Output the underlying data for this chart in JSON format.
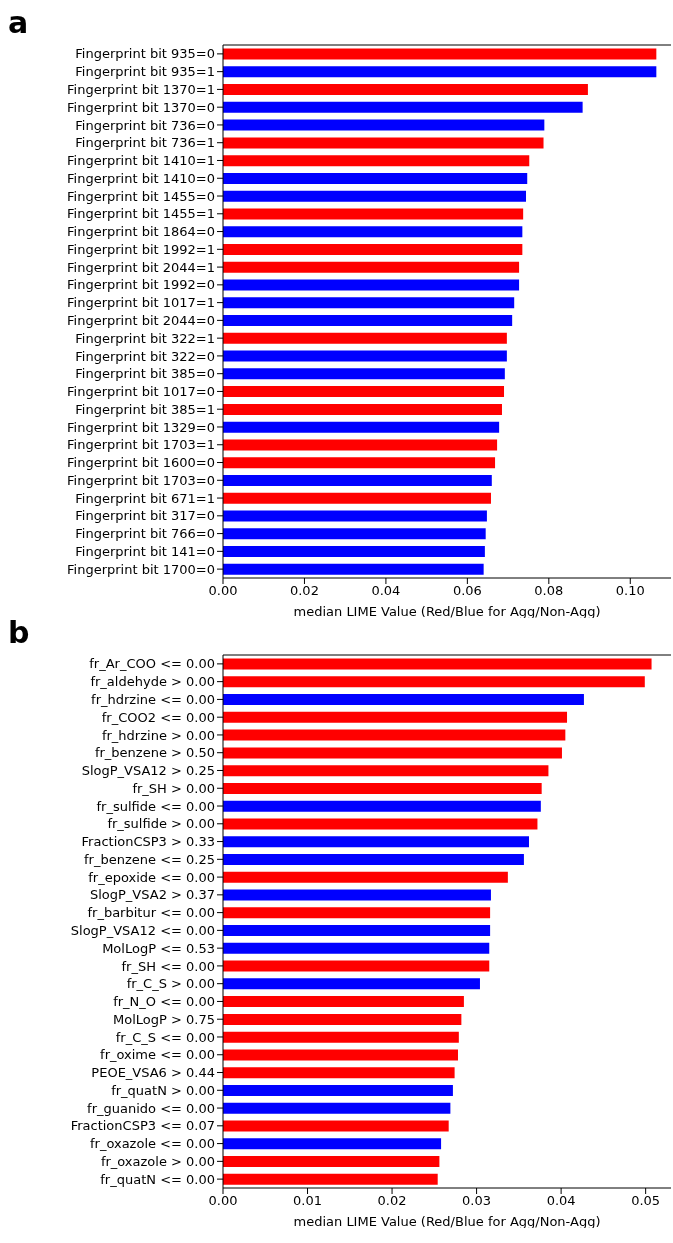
{
  "chart_data": [
    {
      "type": "bar",
      "orientation": "horizontal",
      "title": "a",
      "xlabel": "median LIME Value (Red/Blue for Agg/Non-Agg)",
      "categories": [
        "Fingerprint bit 935=0",
        "Fingerprint bit 935=1",
        "Fingerprint bit 1370=1",
        "Fingerprint bit 1370=0",
        "Fingerprint bit 736=0",
        "Fingerprint bit 736=1",
        "Fingerprint bit 1410=1",
        "Fingerprint bit 1410=0",
        "Fingerprint bit 1455=0",
        "Fingerprint bit 1455=1",
        "Fingerprint bit 1864=0",
        "Fingerprint bit 1992=1",
        "Fingerprint bit 2044=1",
        "Fingerprint bit 1992=0",
        "Fingerprint bit 1017=1",
        "Fingerprint bit 2044=0",
        "Fingerprint bit 322=1",
        "Fingerprint bit 322=0",
        "Fingerprint bit 385=0",
        "Fingerprint bit 1017=0",
        "Fingerprint bit 385=1",
        "Fingerprint bit 1329=0",
        "Fingerprint bit 1703=1",
        "Fingerprint bit 1600=0",
        "Fingerprint bit 1703=0",
        "Fingerprint bit 671=1",
        "Fingerprint bit 317=0",
        "Fingerprint bit 766=0",
        "Fingerprint bit 141=0",
        "Fingerprint bit 1700=0"
      ],
      "values": [
        0.1064,
        0.1064,
        0.0896,
        0.0883,
        0.0789,
        0.0787,
        0.0752,
        0.0747,
        0.0744,
        0.0737,
        0.0735,
        0.0735,
        0.0727,
        0.0727,
        0.0715,
        0.071,
        0.0697,
        0.0697,
        0.0692,
        0.069,
        0.0685,
        0.0678,
        0.0673,
        0.0668,
        0.066,
        0.0658,
        0.0648,
        0.0645,
        0.0643,
        0.064
      ],
      "colors": [
        "#ff0000",
        "#0000ff",
        "#ff0000",
        "#0000ff",
        "#0000ff",
        "#ff0000",
        "#ff0000",
        "#0000ff",
        "#0000ff",
        "#ff0000",
        "#0000ff",
        "#ff0000",
        "#ff0000",
        "#0000ff",
        "#0000ff",
        "#0000ff",
        "#ff0000",
        "#0000ff",
        "#0000ff",
        "#ff0000",
        "#ff0000",
        "#0000ff",
        "#ff0000",
        "#ff0000",
        "#0000ff",
        "#ff0000",
        "#0000ff",
        "#0000ff",
        "#0000ff",
        "#0000ff"
      ],
      "xlim": [
        0,
        0.11
      ],
      "xticks": [
        {
          "value": 0,
          "label": "0.00"
        },
        {
          "value": 0.02,
          "label": "0.02"
        },
        {
          "value": 0.04,
          "label": "0.04"
        },
        {
          "value": 0.06,
          "label": "0.06"
        },
        {
          "value": 0.08,
          "label": "0.08"
        },
        {
          "value": 0.1,
          "label": "0.10"
        }
      ]
    },
    {
      "type": "bar",
      "orientation": "horizontal",
      "title": "b",
      "xlabel": "median LIME Value (Red/Blue for Agg/Non-Agg)",
      "categories": [
        "fr_Ar_COO <= 0.00",
        "fr_aldehyde > 0.00",
        "fr_hdrzine <= 0.00",
        "fr_COO2 <= 0.00",
        "fr_hdrzine > 0.00",
        "fr_benzene > 0.50",
        "SlogP_VSA12 > 0.25",
        "fr_SH > 0.00",
        "fr_sulfide <= 0.00",
        "fr_sulfide > 0.00",
        "FractionCSP3 > 0.33",
        "fr_benzene <= 0.25",
        "fr_epoxide <= 0.00",
        "SlogP_VSA2 > 0.37",
        "fr_barbitur <= 0.00",
        "SlogP_VSA12 <= 0.00",
        "MolLogP <= 0.53",
        "fr_SH <= 0.00",
        "fr_C_S > 0.00",
        "fr_N_O <= 0.00",
        "MolLogP > 0.75",
        "fr_C_S <= 0.00",
        "fr_oxime <= 0.00",
        "PEOE_VSA6 > 0.44",
        "fr_quatN > 0.00",
        "fr_guanido <= 0.00",
        "FractionCSP3 <= 0.07",
        "fr_oxazole <= 0.00",
        "fr_oxazole > 0.00",
        "fr_quatN <= 0.00"
      ],
      "values": [
        0.0507,
        0.0499,
        0.0427,
        0.0407,
        0.0405,
        0.0401,
        0.0385,
        0.0377,
        0.0376,
        0.0372,
        0.0362,
        0.0356,
        0.0337,
        0.0317,
        0.0316,
        0.0316,
        0.0315,
        0.0315,
        0.0304,
        0.0285,
        0.0282,
        0.0279,
        0.0278,
        0.0274,
        0.0272,
        0.0269,
        0.0267,
        0.0258,
        0.0256,
        0.0254
      ],
      "colors": [
        "#ff0000",
        "#ff0000",
        "#0000ff",
        "#ff0000",
        "#ff0000",
        "#ff0000",
        "#ff0000",
        "#ff0000",
        "#0000ff",
        "#ff0000",
        "#0000ff",
        "#0000ff",
        "#ff0000",
        "#0000ff",
        "#ff0000",
        "#0000ff",
        "#0000ff",
        "#ff0000",
        "#0000ff",
        "#ff0000",
        "#ff0000",
        "#ff0000",
        "#ff0000",
        "#ff0000",
        "#0000ff",
        "#0000ff",
        "#ff0000",
        "#0000ff",
        "#ff0000",
        "#ff0000"
      ],
      "xlim": [
        0,
        0.053
      ],
      "xticks": [
        {
          "value": 0,
          "label": "0.00"
        },
        {
          "value": 0.01,
          "label": "0.01"
        },
        {
          "value": 0.02,
          "label": "0.02"
        },
        {
          "value": 0.03,
          "label": "0.03"
        },
        {
          "value": 0.04,
          "label": "0.04"
        },
        {
          "value": 0.05,
          "label": "0.05"
        }
      ]
    }
  ]
}
